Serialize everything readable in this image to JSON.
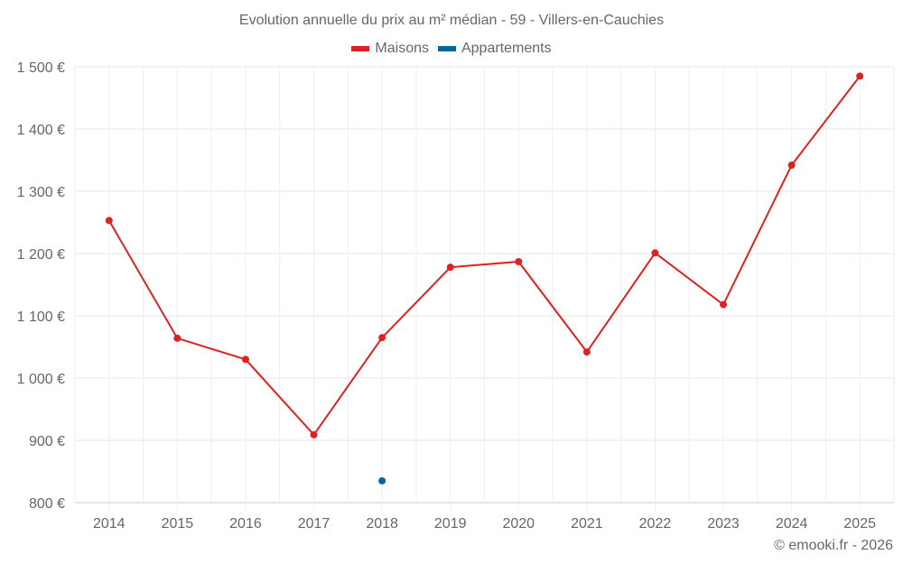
{
  "chart": {
    "title": "Evolution annuelle du prix au m² médian - 59 - Villers-en-Cauchies",
    "credit": "© emooki.fr - 2026",
    "legend": [
      {
        "label": "Maisons",
        "color": "#dd2222"
      },
      {
        "label": "Appartements",
        "color": "#0066a0"
      }
    ]
  },
  "chart_data": {
    "type": "line",
    "title": "Evolution annuelle du prix au m² médian - 59 - Villers-en-Cauchies",
    "xlabel": "",
    "ylabel": "",
    "categories": [
      "2014",
      "2015",
      "2016",
      "2017",
      "2018",
      "2019",
      "2020",
      "2021",
      "2022",
      "2023",
      "2024",
      "2025"
    ],
    "series": [
      {
        "name": "Maisons",
        "color": "#dd2222",
        "values": [
          1253,
          1064,
          1030,
          909,
          1065,
          1178,
          1187,
          1042,
          1201,
          1118,
          1342,
          1485
        ]
      },
      {
        "name": "Appartements",
        "color": "#0066a0",
        "values": [
          null,
          null,
          null,
          null,
          835,
          null,
          null,
          null,
          null,
          null,
          null,
          null
        ]
      }
    ],
    "yticks": [
      "800 €",
      "900 €",
      "1 000 €",
      "1 100 €",
      "1 200 €",
      "1 300 €",
      "1 400 €",
      "1 500 €"
    ],
    "ylim": [
      800,
      1500
    ],
    "grid": true,
    "legend_position": "top"
  }
}
